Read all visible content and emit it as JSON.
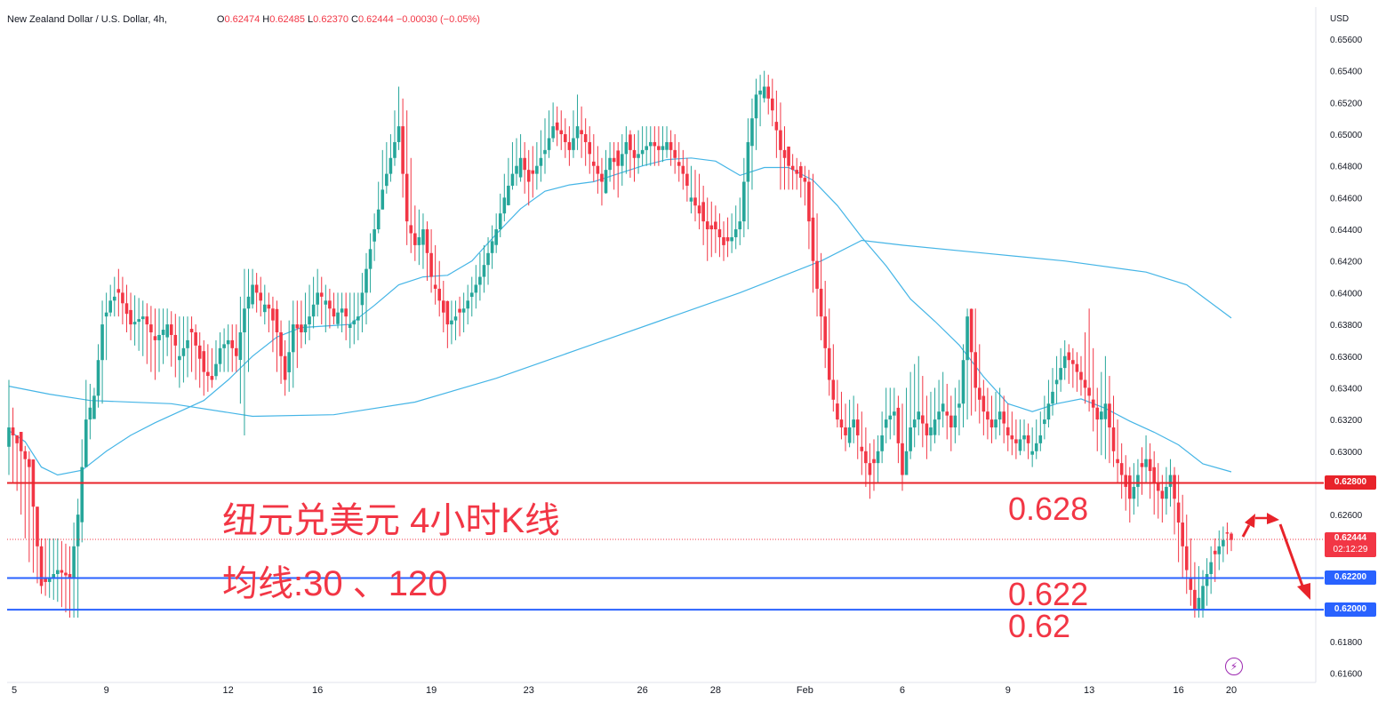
{
  "header": {
    "symbol": "New Zealand Dollar / U.S. Dollar, 4h,",
    "open_label": "O",
    "open": "0.62474",
    "high_label": "H",
    "high": "0.62485",
    "low_label": "L",
    "low": "0.62370",
    "close_label": "C",
    "close": "0.62444",
    "change": "−0.00030 (−0.05%)"
  },
  "currency_label": "USD",
  "price_tags": {
    "line_0628": "0.62800",
    "current": "0.62444",
    "countdown": "02:12:29",
    "line_0622": "0.62200",
    "line_0620": "0.62000"
  },
  "annotations": {
    "title": "纽元兑美元 4小时K线",
    "ma_note": "均线:30 、120",
    "level_0628": "0.628",
    "level_0622": "0.622",
    "level_062": "0.62"
  },
  "colors": {
    "up": "#26a69a",
    "down": "#f23645",
    "ma": "#45b5e6",
    "level_red": "#e8232a",
    "level_blue": "#2962ff"
  },
  "chart_data": {
    "type": "candlestick",
    "instrument": "New Zealand Dollar / U.S. Dollar",
    "timeframe": "4h",
    "ylim": [
      0.616,
      0.656
    ],
    "y_ticks": [
      "0.65600",
      "0.65400",
      "0.65200",
      "0.65000",
      "0.64800",
      "0.64600",
      "0.64400",
      "0.64200",
      "0.64000",
      "0.63800",
      "0.63600",
      "0.63400",
      "0.63200",
      "0.63000",
      "0.62800",
      "0.62600",
      "0.62400",
      "0.62200",
      "0.62000",
      "0.61800",
      "0.61600"
    ],
    "x_labels": [
      "5",
      "9",
      "12",
      "16",
      "19",
      "23",
      "26",
      "28",
      "Feb",
      "6",
      "9",
      "13",
      "16",
      "20"
    ],
    "horizontal_levels": [
      {
        "price": 0.628,
        "label": "0.62800",
        "color": "red"
      },
      {
        "price": 0.622,
        "label": "0.62200",
        "color": "blue"
      },
      {
        "price": 0.62,
        "label": "0.62000",
        "color": "blue"
      }
    ],
    "current_price": 0.62444,
    "moving_average_periods": [
      30,
      120
    ],
    "anchors": [
      [
        0,
        0.6315,
        0.6345,
        0.6285
      ],
      [
        2,
        0.6305,
        0.631,
        0.6275
      ],
      [
        5,
        0.629,
        0.63,
        0.623
      ],
      [
        8,
        0.6215,
        0.6245,
        0.621
      ],
      [
        12,
        0.6225,
        0.6245,
        0.6205
      ],
      [
        15,
        0.622,
        0.624,
        0.6195
      ],
      [
        17,
        0.626,
        0.627,
        0.6195
      ],
      [
        19,
        0.632,
        0.6345,
        0.629
      ],
      [
        21,
        0.6335,
        0.634,
        0.6325
      ],
      [
        23,
        0.638,
        0.6395,
        0.633
      ],
      [
        25,
        0.6395,
        0.6405,
        0.6385
      ],
      [
        27,
        0.64,
        0.6415,
        0.6385
      ],
      [
        30,
        0.638,
        0.64,
        0.637
      ],
      [
        33,
        0.6385,
        0.6395,
        0.636
      ],
      [
        36,
        0.637,
        0.639,
        0.6345
      ],
      [
        39,
        0.638,
        0.639,
        0.636
      ],
      [
        42,
        0.636,
        0.6385,
        0.634
      ],
      [
        45,
        0.6375,
        0.6385,
        0.635
      ],
      [
        48,
        0.635,
        0.637,
        0.6335
      ],
      [
        50,
        0.6345,
        0.6365,
        0.634
      ],
      [
        52,
        0.6365,
        0.6375,
        0.635
      ],
      [
        54,
        0.637,
        0.638,
        0.635
      ],
      [
        56,
        0.636,
        0.638,
        0.635
      ],
      [
        58,
        0.639,
        0.6415,
        0.631
      ],
      [
        60,
        0.6405,
        0.6415,
        0.639
      ],
      [
        62,
        0.6395,
        0.641,
        0.6385
      ],
      [
        64,
        0.639,
        0.64,
        0.6375
      ],
      [
        66,
        0.6375,
        0.6395,
        0.635
      ],
      [
        68,
        0.6345,
        0.637,
        0.6335
      ],
      [
        70,
        0.638,
        0.6395,
        0.634
      ],
      [
        72,
        0.6375,
        0.6395,
        0.6365
      ],
      [
        74,
        0.6385,
        0.6405,
        0.637
      ],
      [
        76,
        0.64,
        0.6415,
        0.6385
      ],
      [
        78,
        0.6395,
        0.6405,
        0.6375
      ],
      [
        80,
        0.6385,
        0.64,
        0.638
      ],
      [
        82,
        0.639,
        0.64,
        0.6375
      ],
      [
        84,
        0.638,
        0.64,
        0.6365
      ],
      [
        86,
        0.6385,
        0.64,
        0.637
      ],
      [
        88,
        0.6415,
        0.6425,
        0.638
      ],
      [
        90,
        0.644,
        0.645,
        0.642
      ],
      [
        92,
        0.6465,
        0.649,
        0.6455
      ],
      [
        94,
        0.6485,
        0.65,
        0.647
      ],
      [
        96,
        0.6505,
        0.653,
        0.649
      ],
      [
        98,
        0.6445,
        0.6515,
        0.643
      ],
      [
        100,
        0.643,
        0.6455,
        0.642
      ],
      [
        102,
        0.644,
        0.645,
        0.6415
      ],
      [
        104,
        0.641,
        0.644,
        0.64
      ],
      [
        106,
        0.6395,
        0.642,
        0.6385
      ],
      [
        108,
        0.638,
        0.6395,
        0.6365
      ],
      [
        110,
        0.6385,
        0.6395,
        0.637
      ],
      [
        112,
        0.639,
        0.64,
        0.6375
      ],
      [
        114,
        0.64,
        0.641,
        0.6385
      ],
      [
        116,
        0.641,
        0.6425,
        0.6395
      ],
      [
        118,
        0.6425,
        0.6435,
        0.6405
      ],
      [
        120,
        0.644,
        0.645,
        0.6425
      ],
      [
        122,
        0.646,
        0.6475,
        0.6445
      ],
      [
        124,
        0.6475,
        0.6495,
        0.6465
      ],
      [
        126,
        0.6485,
        0.65,
        0.647
      ],
      [
        128,
        0.647,
        0.649,
        0.6455
      ],
      [
        130,
        0.648,
        0.6495,
        0.6465
      ],
      [
        132,
        0.649,
        0.651,
        0.6475
      ],
      [
        134,
        0.6505,
        0.652,
        0.6495
      ],
      [
        136,
        0.65,
        0.6515,
        0.649
      ],
      [
        138,
        0.649,
        0.6505,
        0.648
      ],
      [
        140,
        0.6505,
        0.6525,
        0.649
      ],
      [
        142,
        0.6495,
        0.651,
        0.648
      ],
      [
        144,
        0.648,
        0.65,
        0.647
      ],
      [
        146,
        0.647,
        0.6485,
        0.6455
      ],
      [
        148,
        0.6485,
        0.6495,
        0.647
      ],
      [
        150,
        0.648,
        0.6495,
        0.646
      ],
      [
        152,
        0.6495,
        0.6505,
        0.6475
      ],
      [
        154,
        0.6485,
        0.65,
        0.647
      ],
      [
        156,
        0.649,
        0.6505,
        0.648
      ],
      [
        158,
        0.6495,
        0.6505,
        0.648
      ],
      [
        160,
        0.649,
        0.6505,
        0.648
      ],
      [
        162,
        0.6495,
        0.6505,
        0.6485
      ],
      [
        164,
        0.6485,
        0.65,
        0.6475
      ],
      [
        166,
        0.6475,
        0.649,
        0.6465
      ],
      [
        168,
        0.646,
        0.648,
        0.645
      ],
      [
        170,
        0.645,
        0.6475,
        0.644
      ],
      [
        172,
        0.644,
        0.646,
        0.642
      ],
      [
        174,
        0.644,
        0.6455,
        0.6425
      ],
      [
        176,
        0.643,
        0.6445,
        0.642
      ],
      [
        178,
        0.6435,
        0.645,
        0.6425
      ],
      [
        180,
        0.6445,
        0.646,
        0.643
      ],
      [
        182,
        0.6495,
        0.651,
        0.644
      ],
      [
        184,
        0.6525,
        0.6535,
        0.649
      ],
      [
        186,
        0.653,
        0.654,
        0.652
      ],
      [
        188,
        0.6515,
        0.6535,
        0.6505
      ],
      [
        190,
        0.649,
        0.652,
        0.6465
      ],
      [
        192,
        0.648,
        0.649,
        0.6465
      ],
      [
        194,
        0.6475,
        0.6485,
        0.6465
      ],
      [
        196,
        0.647,
        0.648,
        0.6455
      ],
      [
        198,
        0.642,
        0.6475,
        0.64
      ],
      [
        200,
        0.6385,
        0.6425,
        0.637
      ],
      [
        202,
        0.6345,
        0.639,
        0.6335
      ],
      [
        204,
        0.632,
        0.6345,
        0.6315
      ],
      [
        206,
        0.631,
        0.633,
        0.63
      ],
      [
        208,
        0.632,
        0.6335,
        0.6305
      ],
      [
        210,
        0.63,
        0.6325,
        0.6285
      ],
      [
        212,
        0.6285,
        0.6305,
        0.627
      ],
      [
        214,
        0.63,
        0.631,
        0.628
      ],
      [
        216,
        0.632,
        0.634,
        0.6305
      ],
      [
        218,
        0.6325,
        0.634,
        0.631
      ],
      [
        220,
        0.6285,
        0.633,
        0.6275
      ],
      [
        222,
        0.6315,
        0.635,
        0.6295
      ],
      [
        224,
        0.6325,
        0.636,
        0.631
      ],
      [
        226,
        0.631,
        0.6335,
        0.6295
      ],
      [
        228,
        0.632,
        0.634,
        0.6305
      ],
      [
        230,
        0.633,
        0.635,
        0.6315
      ],
      [
        232,
        0.6315,
        0.6335,
        0.63
      ],
      [
        234,
        0.633,
        0.6345,
        0.631
      ],
      [
        236,
        0.6385,
        0.639,
        0.632
      ],
      [
        238,
        0.634,
        0.639,
        0.6325
      ],
      [
        240,
        0.6325,
        0.6345,
        0.631
      ],
      [
        242,
        0.6315,
        0.6335,
        0.6305
      ],
      [
        244,
        0.6325,
        0.634,
        0.631
      ],
      [
        246,
        0.631,
        0.633,
        0.63
      ],
      [
        248,
        0.6305,
        0.632,
        0.6295
      ],
      [
        250,
        0.631,
        0.632,
        0.63
      ],
      [
        252,
        0.63,
        0.6315,
        0.629
      ],
      [
        254,
        0.631,
        0.6325,
        0.63
      ],
      [
        256,
        0.633,
        0.6345,
        0.6315
      ],
      [
        258,
        0.6345,
        0.636,
        0.633
      ],
      [
        260,
        0.636,
        0.637,
        0.6345
      ],
      [
        262,
        0.6355,
        0.6365,
        0.634
      ],
      [
        264,
        0.6345,
        0.636,
        0.6335
      ],
      [
        266,
        0.6335,
        0.639,
        0.6325
      ],
      [
        268,
        0.632,
        0.634,
        0.63
      ],
      [
        270,
        0.633,
        0.636,
        0.6295
      ],
      [
        272,
        0.63,
        0.6335,
        0.629
      ],
      [
        274,
        0.6285,
        0.6305,
        0.627
      ],
      [
        276,
        0.627,
        0.629,
        0.6255
      ],
      [
        278,
        0.6285,
        0.6295,
        0.6265
      ],
      [
        280,
        0.6295,
        0.631,
        0.628
      ],
      [
        282,
        0.628,
        0.63,
        0.626
      ],
      [
        284,
        0.627,
        0.6285,
        0.6255
      ],
      [
        286,
        0.6285,
        0.6295,
        0.6265
      ],
      [
        288,
        0.6255,
        0.6285,
        0.623
      ],
      [
        290,
        0.6225,
        0.626,
        0.621
      ],
      [
        292,
        0.62,
        0.623,
        0.6195
      ],
      [
        294,
        0.6215,
        0.6225,
        0.6195
      ],
      [
        296,
        0.623,
        0.624,
        0.621
      ],
      [
        298,
        0.624,
        0.625,
        0.6225
      ],
      [
        300,
        0.6248,
        0.6255,
        0.6235
      ],
      [
        301,
        0.6244,
        0.6249,
        0.6237
      ]
    ],
    "ma30": [
      [
        0,
        0.6313
      ],
      [
        4,
        0.6306
      ],
      [
        8,
        0.629
      ],
      [
        12,
        0.6285
      ],
      [
        18,
        0.6288
      ],
      [
        24,
        0.63
      ],
      [
        30,
        0.631
      ],
      [
        36,
        0.6318
      ],
      [
        42,
        0.6325
      ],
      [
        48,
        0.6332
      ],
      [
        54,
        0.6345
      ],
      [
        60,
        0.636
      ],
      [
        66,
        0.6372
      ],
      [
        72,
        0.6378
      ],
      [
        78,
        0.6379
      ],
      [
        84,
        0.638
      ],
      [
        90,
        0.6392
      ],
      [
        96,
        0.6405
      ],
      [
        102,
        0.641
      ],
      [
        108,
        0.6411
      ],
      [
        114,
        0.642
      ],
      [
        120,
        0.6437
      ],
      [
        126,
        0.6453
      ],
      [
        132,
        0.6464
      ],
      [
        138,
        0.6468
      ],
      [
        144,
        0.647
      ],
      [
        150,
        0.6475
      ],
      [
        156,
        0.648
      ],
      [
        162,
        0.6484
      ],
      [
        168,
        0.6485
      ],
      [
        174,
        0.6483
      ],
      [
        180,
        0.6474
      ],
      [
        186,
        0.6479
      ],
      [
        192,
        0.6479
      ],
      [
        198,
        0.6471
      ],
      [
        204,
        0.6455
      ],
      [
        210,
        0.6435
      ],
      [
        216,
        0.6417
      ],
      [
        222,
        0.6396
      ],
      [
        228,
        0.6382
      ],
      [
        234,
        0.6367
      ],
      [
        240,
        0.6347
      ],
      [
        246,
        0.633
      ],
      [
        252,
        0.6325
      ],
      [
        258,
        0.633
      ],
      [
        264,
        0.6333
      ],
      [
        270,
        0.6327
      ],
      [
        276,
        0.6319
      ],
      [
        282,
        0.6312
      ],
      [
        288,
        0.6304
      ],
      [
        294,
        0.6292
      ],
      [
        301,
        0.6287
      ]
    ],
    "ma120": [
      [
        0,
        0.6341
      ],
      [
        10,
        0.6336
      ],
      [
        20,
        0.6332
      ],
      [
        40,
        0.633
      ],
      [
        60,
        0.6322
      ],
      [
        80,
        0.6323
      ],
      [
        100,
        0.6331
      ],
      [
        120,
        0.6346
      ],
      [
        140,
        0.6364
      ],
      [
        160,
        0.6382
      ],
      [
        180,
        0.64
      ],
      [
        200,
        0.642
      ],
      [
        210,
        0.6433
      ],
      [
        220,
        0.643
      ],
      [
        240,
        0.6425
      ],
      [
        260,
        0.642
      ],
      [
        280,
        0.6413
      ],
      [
        290,
        0.6405
      ],
      [
        301,
        0.6384
      ]
    ]
  }
}
